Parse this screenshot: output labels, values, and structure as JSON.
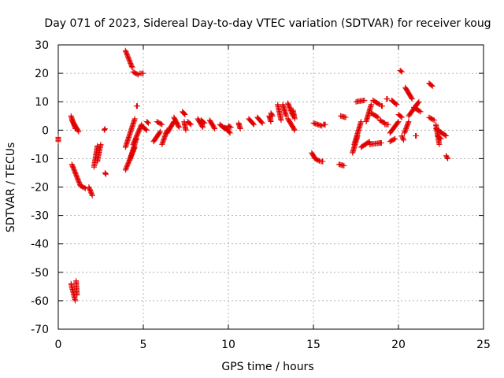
{
  "chart_data": {
    "type": "scatter",
    "title": "Day 071 of 2023, Sidereal Day-to-day VTEC variation (SDTVAR) for receiver koug",
    "xlabel": "GPS time / hours",
    "ylabel": "SDTVAR / TECUs",
    "xlim": [
      0,
      25
    ],
    "ylim": [
      -70,
      30
    ],
    "xticks": [
      0,
      5,
      10,
      15,
      20,
      25
    ],
    "yticks": [
      -70,
      -60,
      -50,
      -40,
      -30,
      -20,
      -10,
      0,
      10,
      20,
      30
    ],
    "grid": true,
    "marker": "+",
    "color": "#e00000",
    "segments": [
      {
        "x": [
          0.0,
          0.0
        ],
        "y": [
          -2.5,
          -4.0
        ]
      },
      {
        "x": [
          0.75,
          1.0
        ],
        "y": [
          5.0,
          0.5
        ]
      },
      {
        "x": [
          0.8,
          1.2
        ],
        "y": [
          3.5,
          -0.5
        ]
      },
      {
        "x": [
          0.8,
          1.3
        ],
        "y": [
          -12.0,
          -19.5
        ]
      },
      {
        "x": [
          0.75,
          1.0
        ],
        "y": [
          -54.0,
          -60.0
        ]
      },
      {
        "x": [
          1.05,
          1.1
        ],
        "y": [
          -53.0,
          -58.0
        ]
      },
      {
        "x": [
          1.3,
          1.6
        ],
        "y": [
          -19.5,
          -20.5
        ]
      },
      {
        "x": [
          1.8,
          2.0
        ],
        "y": [
          -20.0,
          -23.0
        ]
      },
      {
        "x": [
          2.1,
          2.3
        ],
        "y": [
          -13.0,
          -5.5
        ]
      },
      {
        "x": [
          2.3,
          2.5
        ],
        "y": [
          -11.0,
          -5.0
        ]
      },
      {
        "x": [
          2.7,
          2.75
        ],
        "y": [
          0.0,
          0.5
        ]
      },
      {
        "x": [
          2.75,
          2.8
        ],
        "y": [
          -15.0,
          -15.5
        ]
      },
      {
        "x": [
          3.95,
          4.35
        ],
        "y": [
          28.0,
          22.0
        ]
      },
      {
        "x": [
          4.4,
          4.7
        ],
        "y": [
          20.5,
          19.5
        ]
      },
      {
        "x": [
          4.8,
          5.0
        ],
        "y": [
          20.0,
          20.0
        ]
      },
      {
        "x": [
          3.95,
          4.5
        ],
        "y": [
          -14.0,
          -6.0
        ]
      },
      {
        "x": [
          3.95,
          4.5
        ],
        "y": [
          -6.0,
          4.0
        ]
      },
      {
        "x": [
          4.2,
          4.6
        ],
        "y": [
          -10.5,
          -3.0
        ]
      },
      {
        "x": [
          4.4,
          4.9
        ],
        "y": [
          -5.0,
          2.0
        ]
      },
      {
        "x": [
          4.6,
          4.65
        ],
        "y": [
          8.5,
          8.5
        ]
      },
      {
        "x": [
          4.9,
          5.2
        ],
        "y": [
          1.5,
          0.0
        ]
      },
      {
        "x": [
          5.2,
          5.3
        ],
        "y": [
          3.0,
          2.5
        ]
      },
      {
        "x": [
          5.6,
          6.0
        ],
        "y": [
          -4.0,
          -0.5
        ]
      },
      {
        "x": [
          5.8,
          6.1
        ],
        "y": [
          3.0,
          2.0
        ]
      },
      {
        "x": [
          6.1,
          6.4
        ],
        "y": [
          -5.0,
          0.0
        ]
      },
      {
        "x": [
          6.4,
          6.8
        ],
        "y": [
          -1.0,
          3.0
        ]
      },
      {
        "x": [
          6.8,
          7.1
        ],
        "y": [
          4.5,
          1.0
        ]
      },
      {
        "x": [
          7.3,
          7.45
        ],
        "y": [
          6.5,
          5.5
        ]
      },
      {
        "x": [
          7.4,
          7.5
        ],
        "y": [
          3.0,
          0.0
        ]
      },
      {
        "x": [
          7.6,
          7.8
        ],
        "y": [
          3.0,
          2.0
        ]
      },
      {
        "x": [
          8.2,
          8.5
        ],
        "y": [
          4.0,
          1.0
        ]
      },
      {
        "x": [
          8.4,
          8.6
        ],
        "y": [
          3.5,
          2.5
        ]
      },
      {
        "x": [
          8.9,
          9.2
        ],
        "y": [
          3.5,
          0.5
        ]
      },
      {
        "x": [
          9.5,
          9.8
        ],
        "y": [
          2.0,
          0.5
        ]
      },
      {
        "x": [
          9.8,
          10.1
        ],
        "y": [
          1.0,
          -1.0
        ]
      },
      {
        "x": [
          10.0,
          10.15
        ],
        "y": [
          1.5,
          1.0
        ]
      },
      {
        "x": [
          10.6,
          10.7
        ],
        "y": [
          2.5,
          0.5
        ]
      },
      {
        "x": [
          11.2,
          11.5
        ],
        "y": [
          4.0,
          2.0
        ]
      },
      {
        "x": [
          11.7,
          12.0
        ],
        "y": [
          4.5,
          2.5
        ]
      },
      {
        "x": [
          12.4,
          12.5
        ],
        "y": [
          5.0,
          3.0
        ]
      },
      {
        "x": [
          12.5,
          12.6
        ],
        "y": [
          6.0,
          5.0
        ]
      },
      {
        "x": [
          12.9,
          13.1
        ],
        "y": [
          9.0,
          3.5
        ]
      },
      {
        "x": [
          13.2,
          13.4
        ],
        "y": [
          9.0,
          5.0
        ]
      },
      {
        "x": [
          13.5,
          13.8
        ],
        "y": [
          9.5,
          5.0
        ]
      },
      {
        "x": [
          13.5,
          13.9
        ],
        "y": [
          4.0,
          0.0
        ]
      },
      {
        "x": [
          13.8,
          13.9
        ],
        "y": [
          7.0,
          4.0
        ]
      },
      {
        "x": [
          14.9,
          15.1
        ],
        "y": [
          -8.0,
          -10.0
        ]
      },
      {
        "x": [
          15.1,
          15.4
        ],
        "y": [
          -10.0,
          -11.0
        ]
      },
      {
        "x": [
          15.5,
          15.55
        ],
        "y": [
          -11.0,
          -11.0
        ]
      },
      {
        "x": [
          15.0,
          15.5
        ],
        "y": [
          2.5,
          1.5
        ]
      },
      {
        "x": [
          15.6,
          15.7
        ],
        "y": [
          2.0,
          2.0
        ]
      },
      {
        "x": [
          16.5,
          16.8
        ],
        "y": [
          -12.0,
          -12.5
        ]
      },
      {
        "x": [
          16.6,
          16.9
        ],
        "y": [
          5.0,
          4.5
        ]
      },
      {
        "x": [
          17.3,
          17.6
        ],
        "y": [
          -8.0,
          -2.0
        ]
      },
      {
        "x": [
          17.4,
          17.8
        ],
        "y": [
          -5.0,
          3.0
        ]
      },
      {
        "x": [
          17.5,
          18.0
        ],
        "y": [
          10.0,
          10.5
        ]
      },
      {
        "x": [
          17.8,
          18.3
        ],
        "y": [
          -6.0,
          -4.0
        ]
      },
      {
        "x": [
          18.3,
          18.9
        ],
        "y": [
          -5.0,
          -4.5
        ]
      },
      {
        "x": [
          18.9,
          19.0
        ],
        "y": [
          -4.5,
          -4.5
        ]
      },
      {
        "x": [
          18.1,
          18.4
        ],
        "y": [
          3.0,
          9.0
        ]
      },
      {
        "x": [
          18.4,
          18.8
        ],
        "y": [
          6.0,
          4.5
        ]
      },
      {
        "x": [
          18.5,
          18.9
        ],
        "y": [
          10.5,
          9.0
        ]
      },
      {
        "x": [
          18.9,
          19.2
        ],
        "y": [
          3.5,
          2.5
        ]
      },
      {
        "x": [
          19.2,
          19.4
        ],
        "y": [
          2.0,
          2.0
        ]
      },
      {
        "x": [
          19.0,
          19.05
        ],
        "y": [
          8.5,
          8.5
        ]
      },
      {
        "x": [
          19.3,
          19.35
        ],
        "y": [
          11.0,
          11.0
        ]
      },
      {
        "x": [
          19.5,
          19.8
        ],
        "y": [
          -4.0,
          -3.0
        ]
      },
      {
        "x": [
          19.5,
          20.0
        ],
        "y": [
          -1.0,
          3.0
        ]
      },
      {
        "x": [
          19.6,
          19.9
        ],
        "y": [
          10.5,
          9.0
        ]
      },
      {
        "x": [
          20.0,
          20.2
        ],
        "y": [
          5.5,
          4.5
        ]
      },
      {
        "x": [
          20.1,
          20.2
        ],
        "y": [
          21.0,
          20.5
        ]
      },
      {
        "x": [
          20.2,
          20.3
        ],
        "y": [
          -2.0,
          -3.5
        ]
      },
      {
        "x": [
          20.35,
          20.6
        ],
        "y": [
          -1.0,
          3.0
        ]
      },
      {
        "x": [
          20.4,
          20.8
        ],
        "y": [
          15.0,
          11.0
        ]
      },
      {
        "x": [
          20.6,
          21.2
        ],
        "y": [
          5.0,
          10.0
        ]
      },
      {
        "x": [
          20.9,
          21.3
        ],
        "y": [
          8.0,
          6.5
        ]
      },
      {
        "x": [
          21.0,
          21.05
        ],
        "y": [
          -2.0,
          -2.0
        ]
      },
      {
        "x": [
          21.8,
          22.0
        ],
        "y": [
          16.5,
          15.5
        ]
      },
      {
        "x": [
          21.8,
          22.1
        ],
        "y": [
          4.5,
          3.5
        ]
      },
      {
        "x": [
          22.2,
          22.4
        ],
        "y": [
          2.0,
          -5.0
        ]
      },
      {
        "x": [
          22.2,
          22.8
        ],
        "y": [
          0.5,
          -2.0
        ]
      },
      {
        "x": [
          22.3,
          22.5
        ],
        "y": [
          -2.0,
          -3.0
        ]
      },
      {
        "x": [
          22.8,
          22.9
        ],
        "y": [
          -9.0,
          -10.0
        ]
      }
    ]
  }
}
